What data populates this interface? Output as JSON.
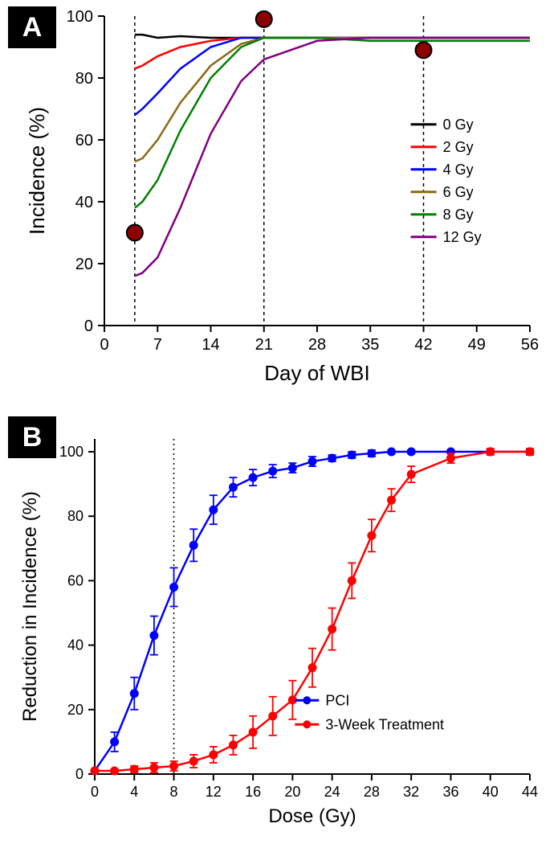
{
  "panelA": {
    "label": "A",
    "type": "line",
    "title": "",
    "xlabel": "Day of WBI",
    "ylabel": "Incidence (%)",
    "label_fontsize": 26,
    "tick_fontsize": 20,
    "xlim": [
      0,
      56
    ],
    "ylim": [
      0,
      100
    ],
    "xticks": [
      0,
      7,
      14,
      21,
      28,
      35,
      42,
      49,
      56
    ],
    "yticks": [
      0,
      20,
      40,
      60,
      80,
      100
    ],
    "vlines": [
      4,
      21,
      42
    ],
    "vline_style": "dashed",
    "vline_color": "#000000",
    "background_color": "#ffffff",
    "axis_color": "#000000",
    "axis_width": 2,
    "line_width": 2.5,
    "legend_fontsize": 18,
    "series": [
      {
        "name": "0 Gy",
        "color": "#000000",
        "x": [
          4,
          5,
          7,
          10,
          14,
          18,
          21,
          28,
          35,
          42,
          49,
          56
        ],
        "y": [
          94,
          94,
          93,
          93.5,
          93,
          93,
          93,
          93,
          93,
          93,
          93,
          93
        ]
      },
      {
        "name": "2 Gy",
        "color": "#ff0000",
        "x": [
          4,
          5,
          7,
          10,
          14,
          18,
          21,
          28,
          35,
          42,
          49,
          56
        ],
        "y": [
          83,
          84,
          87,
          90,
          92,
          93,
          93,
          93,
          93,
          93,
          93,
          93
        ]
      },
      {
        "name": "4 Gy",
        "color": "#0000ff",
        "x": [
          4,
          5,
          7,
          10,
          14,
          18,
          21,
          28,
          35,
          42,
          49,
          56
        ],
        "y": [
          68,
          70,
          75,
          83,
          90,
          93,
          93,
          93,
          93,
          93,
          93,
          93
        ]
      },
      {
        "name": "6 Gy",
        "color": "#8b6914",
        "x": [
          4,
          5,
          7,
          10,
          14,
          18,
          21,
          28,
          35,
          42,
          49,
          56
        ],
        "y": [
          53,
          54,
          60,
          72,
          84,
          91,
          93,
          93,
          93,
          93,
          93,
          93
        ]
      },
      {
        "name": "8 Gy",
        "color": "#008000",
        "x": [
          4,
          5,
          7,
          10,
          14,
          18,
          21,
          28,
          35,
          42,
          49,
          56
        ],
        "y": [
          38,
          40,
          47,
          63,
          80,
          90,
          93,
          93,
          92,
          92,
          92,
          92
        ]
      },
      {
        "name": "12 Gy",
        "color": "#800080",
        "x": [
          4,
          5,
          7,
          10,
          14,
          18,
          21,
          28,
          35,
          42,
          49,
          56
        ],
        "y": [
          16,
          17,
          22,
          38,
          62,
          79,
          86,
          92,
          93,
          93,
          93,
          93
        ]
      }
    ],
    "markers": [
      {
        "x": 4,
        "y": 30,
        "r": 10,
        "fill": "#8b0000",
        "stroke": "#000000",
        "stroke_width": 2
      },
      {
        "x": 21,
        "y": 99,
        "r": 10,
        "fill": "#8b0000",
        "stroke": "#000000",
        "stroke_width": 2
      },
      {
        "x": 42,
        "y": 89,
        "r": 10,
        "fill": "#8b0000",
        "stroke": "#000000",
        "stroke_width": 2
      }
    ]
  },
  "panelB": {
    "label": "B",
    "type": "line-errorbar",
    "title": "",
    "xlabel": "Dose (Gy)",
    "ylabel": "Reduction in Incidence (%)",
    "label_fontsize": 24,
    "tick_fontsize": 18,
    "xlim": [
      0,
      44
    ],
    "ylim": [
      0,
      104
    ],
    "xticks": [
      0,
      4,
      8,
      12,
      16,
      20,
      24,
      28,
      32,
      36,
      40,
      44
    ],
    "yticks": [
      0,
      20,
      40,
      60,
      80,
      100
    ],
    "vlines": [
      8
    ],
    "vline_style": "dotted",
    "vline_color": "#000000",
    "background_color": "#ffffff",
    "axis_color": "#000000",
    "axis_width": 2,
    "line_width": 2.5,
    "marker_size": 5,
    "errorbar_cap": 5,
    "legend_fontsize": 18,
    "series": [
      {
        "name": "PCI",
        "color": "#0000ff",
        "marker": "circle",
        "x": [
          0,
          2,
          4,
          6,
          8,
          10,
          12,
          14,
          16,
          18,
          20,
          22,
          24,
          26,
          28,
          30,
          32,
          36,
          40,
          44
        ],
        "y": [
          1,
          10,
          25,
          43,
          58,
          71,
          82,
          89,
          92,
          94,
          95,
          97,
          98,
          99,
          99.5,
          100,
          100,
          100,
          100,
          100
        ],
        "err": [
          0,
          3,
          5,
          6,
          6,
          5,
          4.5,
          3,
          2.5,
          2,
          1.5,
          1.5,
          1,
          1,
          1,
          0.5,
          0.5,
          0.5,
          0.5,
          0.5
        ]
      },
      {
        "name": "3-Week Treatment",
        "color": "#ff0000",
        "marker": "circle",
        "x": [
          0,
          2,
          4,
          6,
          8,
          10,
          12,
          14,
          16,
          18,
          20,
          22,
          24,
          26,
          28,
          30,
          32,
          36,
          40,
          44
        ],
        "y": [
          1,
          1,
          1.5,
          2,
          2.5,
          4,
          6,
          9,
          13,
          18,
          23,
          33,
          45,
          60,
          74,
          85,
          93,
          98,
          100,
          100
        ],
        "err": [
          0,
          0.5,
          1,
          1.5,
          1.5,
          2,
          2.5,
          3,
          5,
          6,
          6,
          6,
          6.5,
          5.5,
          5,
          3.5,
          2.5,
          1.5,
          1,
          1
        ]
      }
    ]
  }
}
